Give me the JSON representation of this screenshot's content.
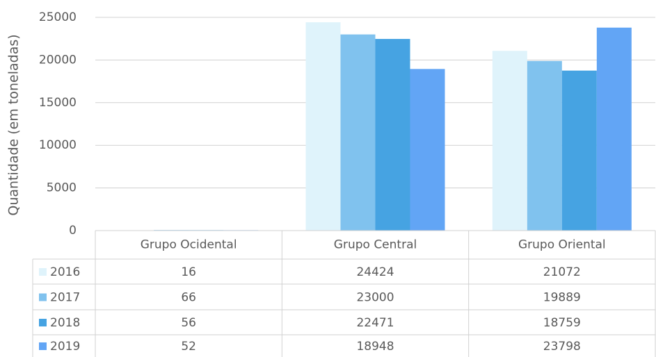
{
  "chart_data": {
    "type": "bar",
    "y_axis_label": "Quantidade (em toneladas)",
    "categories": [
      "Grupo Ocidental",
      "Grupo Central",
      "Grupo Oriental"
    ],
    "series": [
      {
        "name": "2016",
        "color": "#dff3fb",
        "values": [
          16,
          24424,
          21072
        ]
      },
      {
        "name": "2017",
        "color": "#80c2ee",
        "values": [
          66,
          23000,
          19889
        ]
      },
      {
        "name": "2018",
        "color": "#46a3e2",
        "values": [
          56,
          22471,
          18759
        ]
      },
      {
        "name": "2019",
        "color": "#62a5f5",
        "values": [
          52,
          18948,
          23798
        ]
      }
    ],
    "ylim": [
      0,
      25000
    ],
    "yticks": [
      0,
      5000,
      10000,
      15000,
      20000,
      25000
    ],
    "grid": true
  }
}
